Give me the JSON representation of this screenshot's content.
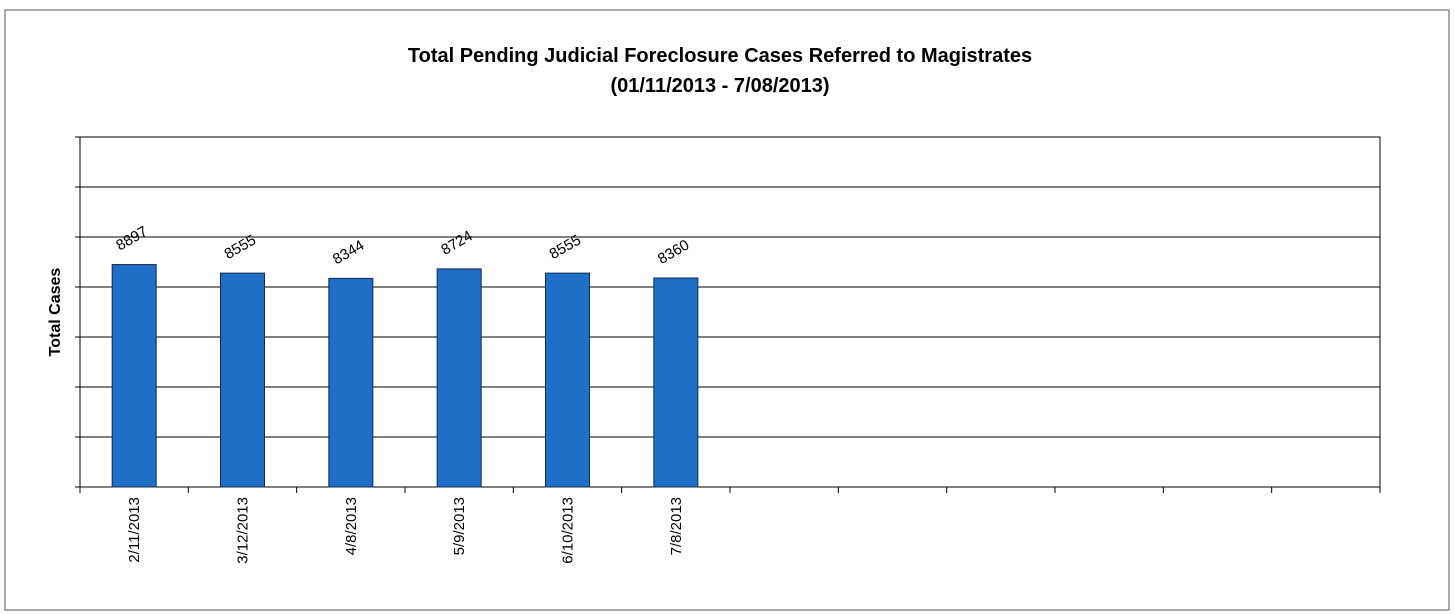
{
  "chart_data": {
    "type": "bar",
    "title": "Total Pending Judicial  Foreclosure Cases Referred to Magistrates",
    "subtitle": "(01/11/2013 - 7/08/2013)",
    "y_label": "Total Cases",
    "categories": [
      "2/11/2013",
      "3/12/2013",
      "4/8/2013",
      "5/9/2013",
      "6/10/2013",
      "7/8/2013",
      null,
      null,
      null,
      null,
      null,
      null
    ],
    "values": [
      8897,
      8555,
      8344,
      8724,
      8555,
      8360,
      null,
      null,
      null,
      null,
      null,
      null
    ],
    "color": "#1f6fc6",
    "ylim": [
      0,
      14000
    ],
    "yticks": [
      0,
      2000,
      4000,
      6000,
      8000,
      10000,
      12000,
      14000
    ],
    "grid": true
  }
}
